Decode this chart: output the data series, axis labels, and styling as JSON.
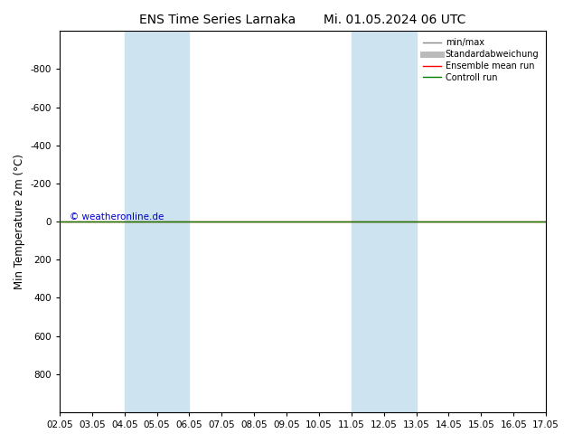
{
  "title": "ENS Time Series Larnaka       Mi. 01.05.2024 06 UTC",
  "ylabel": "Min Temperature 2m (°C)",
  "xlabel_ticks": [
    "02.05",
    "03.05",
    "04.05",
    "05.05",
    "06.05",
    "07.05",
    "08.05",
    "09.05",
    "10.05",
    "11.05",
    "12.05",
    "13.05",
    "14.05",
    "15.05",
    "16.05",
    "17.05"
  ],
  "ylim": [
    1000,
    -1000
  ],
  "yticks": [
    800,
    600,
    400,
    200,
    0,
    -200,
    -400,
    -600,
    -800
  ],
  "ytick_labels": [
    "800",
    "600",
    "400",
    "200",
    "0",
    "-200",
    "-400",
    "-600",
    "-800"
  ],
  "xlim": [
    0,
    15
  ],
  "background_color": "#ffffff",
  "plot_bg_color": "#ffffff",
  "shaded_bands": [
    {
      "xstart": 2,
      "xend": 4,
      "color": "#cde3f0"
    },
    {
      "xstart": 9,
      "xend": 11,
      "color": "#cde3f0"
    }
  ],
  "control_run_y": 0.0,
  "ensemble_mean_y": 0.0,
  "control_run_color": "#008000",
  "ensemble_mean_color": "#ff0000",
  "minmax_color": "#888888",
  "std_color": "#bbbbbb",
  "watermark": "© weatheronline.de",
  "watermark_color": "#0000cc",
  "legend_items": [
    {
      "label": "min/max",
      "color": "#888888",
      "lw": 1
    },
    {
      "label": "Standardabweichung",
      "color": "#bbbbbb",
      "lw": 5
    },
    {
      "label": "Ensemble mean run",
      "color": "#ff0000",
      "lw": 1
    },
    {
      "label": "Controll run",
      "color": "#008000",
      "lw": 1
    }
  ],
  "title_fontsize": 10,
  "tick_fontsize": 7.5,
  "ylabel_fontsize": 8.5
}
